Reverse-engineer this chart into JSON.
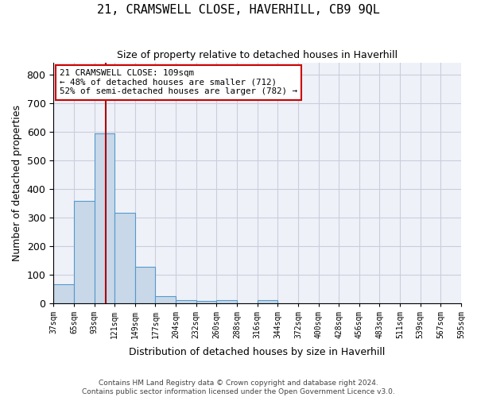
{
  "title": "21, CRAMSWELL CLOSE, HAVERHILL, CB9 9QL",
  "subtitle": "Size of property relative to detached houses in Haverhill",
  "xlabel": "Distribution of detached houses by size in Haverhill",
  "ylabel": "Number of detached properties",
  "footer_line1": "Contains HM Land Registry data © Crown copyright and database right 2024.",
  "footer_line2": "Contains public sector information licensed under the Open Government Licence v3.0.",
  "bin_labels": [
    "37sqm",
    "65sqm",
    "93sqm",
    "121sqm",
    "149sqm",
    "177sqm",
    "204sqm",
    "232sqm",
    "260sqm",
    "288sqm",
    "316sqm",
    "344sqm",
    "372sqm",
    "400sqm",
    "428sqm",
    "456sqm",
    "483sqm",
    "511sqm",
    "539sqm",
    "567sqm",
    "595sqm"
  ],
  "bar_values": [
    65,
    357,
    595,
    315,
    128,
    25,
    10,
    7,
    10,
    0,
    10,
    0,
    0,
    0,
    0,
    0,
    0,
    0,
    0,
    0
  ],
  "bar_color": "#c8d8e8",
  "bar_edge_color": "#5599cc",
  "grid_color": "#ccccdd",
  "background_color": "#eef2f8",
  "vline_color": "#aa0000",
  "annotation_text": "21 CRAMSWELL CLOSE: 109sqm\n← 48% of detached houses are smaller (712)\n52% of semi-detached houses are larger (782) →",
  "annotation_box_color": "#cc0000",
  "ylim": [
    0,
    840
  ],
  "yticks": [
    0,
    100,
    200,
    300,
    400,
    500,
    600,
    700,
    800
  ]
}
